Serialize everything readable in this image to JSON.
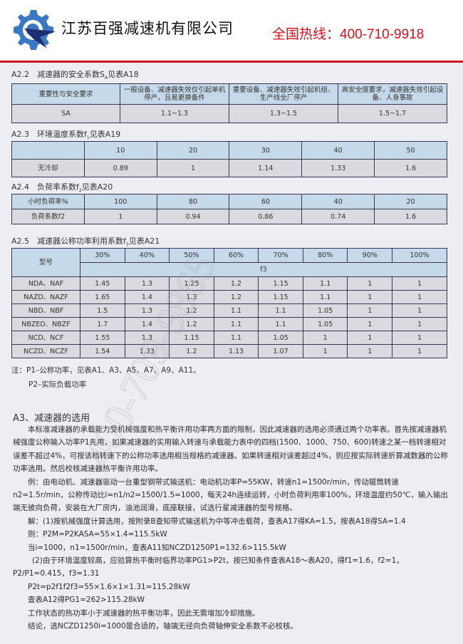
{
  "header": {
    "company": "江苏百强减速机有限公司",
    "hotline": "全国热线：400-710-9918",
    "brand_colors": {
      "blue": "#3b78c2",
      "navy": "#1d2f6e",
      "red": "#d0121b"
    },
    "logo_icon": "gear-star-logo"
  },
  "watermark": "400-709-9865",
  "a18": {
    "title": "A2.2　减速器的安全系数S",
    "title_sub": "A",
    "title_end": "见表A18",
    "header": [
      "重要性与安全要求",
      "一般设备、减速器失效仅引起单机停产，且易更换备件",
      "重要设备、减速器失效引起机组、生产线全厂停产",
      "高安全度要求，减速器失效引起设备、人身事故"
    ],
    "row": [
      "SA",
      "1.1~1.3",
      "1.3~1.5",
      "1.5~1.7"
    ]
  },
  "a19": {
    "title": "A2.3　环境温度系数f",
    "title_sub": "1",
    "title_end": "见表A19",
    "header": [
      "",
      "10",
      "20",
      "30",
      "40",
      "50"
    ],
    "row": [
      "无冷却",
      "0.89",
      "1",
      "1.14",
      "1.33",
      "1.6"
    ]
  },
  "a20": {
    "title": "A2.4　负荷率系数f",
    "title_sub": "2",
    "title_end": "见表A20",
    "header": [
      "小时负荷率%",
      "100",
      "80",
      "60",
      "40",
      "20"
    ],
    "row": [
      "负荷系数f2",
      "1",
      "0.94",
      "0.86",
      "0.74",
      "1.6"
    ]
  },
  "a21": {
    "title": "A2.5　减速器公称功率利用系数f",
    "title_sub": "3",
    "title_end": "见表A21",
    "model_label": "型号",
    "percent": [
      "30%",
      "40%",
      "50%",
      "60%",
      "70%",
      "80%",
      "90%",
      "100%"
    ],
    "f_label": "f3",
    "rows": [
      [
        "NDA、NAF",
        "1.45",
        "1.3",
        "1.25",
        "1.2",
        "1.15",
        "1.1",
        "1",
        "1"
      ],
      [
        "NAZD、NAZF",
        "1.65",
        "1.4",
        "1.3",
        "1.2",
        "1.15",
        "1.1",
        "1",
        "1"
      ],
      [
        "NBD、NBF",
        "1.5",
        "1.3",
        "1.2",
        "1.1",
        "1.1",
        "1.05",
        "1",
        "1"
      ],
      [
        "NBZED、NBZF",
        "1.7",
        "1.4",
        "1.2",
        "1.1",
        "1.1",
        "1.05",
        "1",
        "1"
      ],
      [
        "NCD、NCF",
        "1.55",
        "1.3",
        "1.15",
        "1.1",
        "1.05",
        "1",
        "1",
        "1"
      ],
      [
        "NCZD、NCZF",
        "1.54",
        "1.33",
        "1.2",
        "1.13",
        "1.07",
        "1",
        "1",
        "1"
      ]
    ]
  },
  "notes": [
    "注：P1–公称功率，见表A1、A3、A5、A7、A9、A11。",
    "P2–实际负载功率"
  ],
  "a3": {
    "title": "A3、减速器的选用",
    "intro": "本标准减速器的承载能力受机械强度和热平衡许用功率两方面的限制，因此减速器的选用必须通过两个功率表。首先按减速器机械强度公称输入功率P1先用，如果减速器的实用输入转速与承载能力表中的四档(1500、1000、750、600)转速之某一档转速相对误差不超过4%，可按该档转速下的公称功率选用相当规格的减速器。如果转速相对误差超过4%，则应按实际转速折算减数器的公称功率选用。然后校核减速器热平衡许用功率。",
    "example": "例：由电动机、减速器驱动一台重型钢带式输送机：电动机功率P=55KW，转速n1=1500r/min，传动辊筒转速n2=1.5r/min，公称传动比l=n1/n2=1500/1.5=1000，每天24h连续运转，小时负荷利用率100%，环境温度约50℃，输入输出端无彼向负荷，安装在大厂房内，油池润滑，底座联接，试选行星减速器的型号规格。",
    "sol1": "解：(1)按机械强度计算选用，按附录B查知带式输送机为中等冲击载荷，查表A17得KA=1.5，按表A18得SA=1.4",
    "sol2": "则：P2M=P2KASA=55×1.4=115.5kW",
    "sol3": "当i=1000，n1=1500r/min，查表A11知NCZD1250P1=132.6>115.5kW",
    "sol4": "(2)由于环境温度较高，应验算热平衡时临界功率PG1>P2t，按已知条件查表A18～表A20，得f1=1.6，f2=1，P2/P1=0.415，f3=1.31",
    "sol5": "P2t=p2f1f2f3=55×1.6×1×1.31=115.28kW",
    "sol6": "查表A12得PG1=262>115.28kW",
    "sol7": "工作状态的热功率小于减速器的热平衡功率，因此无需增加冷却措施。",
    "sol8": "结论，选NCZD1250i=1000是合适的，轴端无径向负荷轴伸安全系数不必校核。"
  }
}
